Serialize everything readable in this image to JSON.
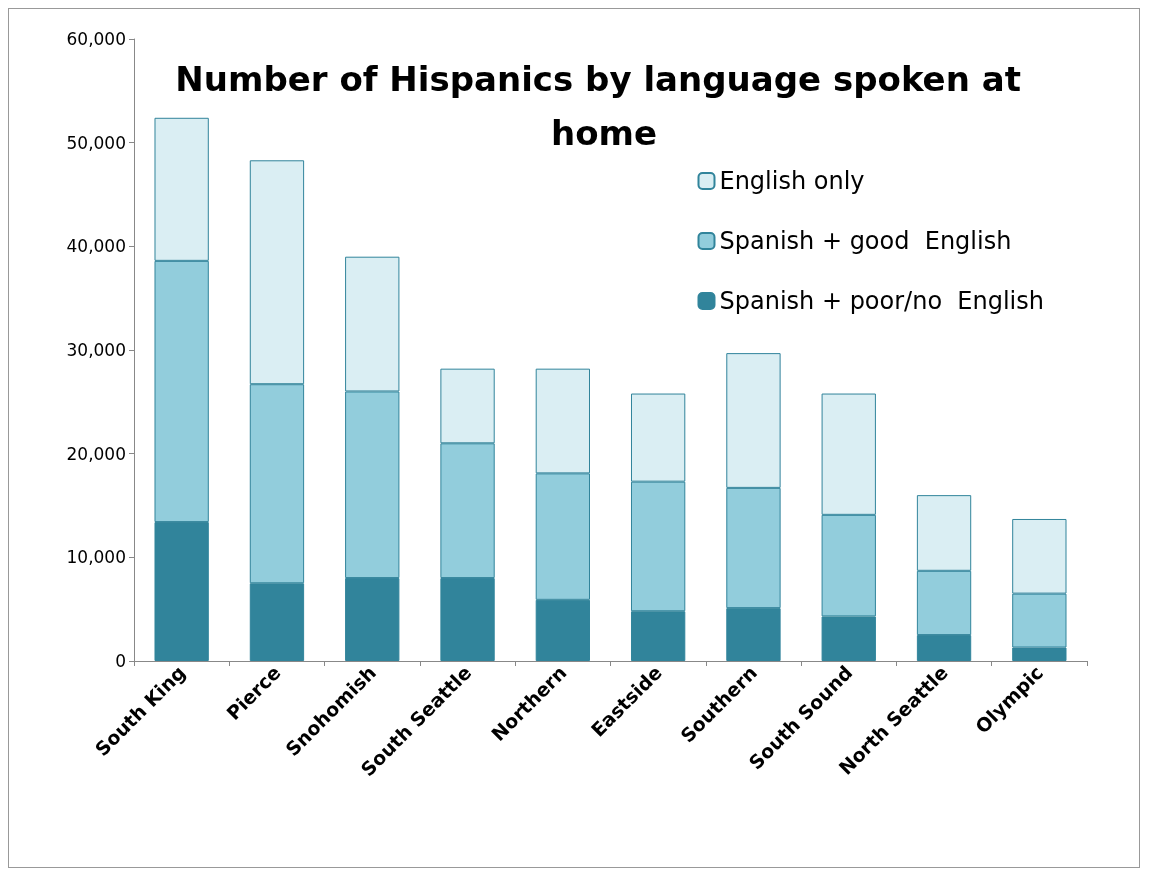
{
  "chart_data": {
    "type": "bar",
    "stacked": true,
    "title": "Number of Hispanics by language spoken at home",
    "categories": [
      "South King",
      "Pierce",
      "Snohomish",
      "South Seattle",
      "Northern",
      "Eastside",
      "Southern",
      "South Sound",
      "North Seattle",
      "Olympic"
    ],
    "series": [
      {
        "name": "Spanish + poor/no  English",
        "color": "#31849b",
        "values": [
          13400,
          7500,
          8000,
          8000,
          5900,
          4800,
          5100,
          4300,
          2500,
          1300
        ]
      },
      {
        "name": "Spanish + good  English",
        "color": "#92cddc",
        "values": [
          25200,
          19200,
          18000,
          13000,
          12200,
          12500,
          11600,
          9800,
          6200,
          5200
        ]
      },
      {
        "name": "English only",
        "color": "#daeef3",
        "values": [
          13800,
          21600,
          13000,
          7200,
          10100,
          8500,
          13000,
          11700,
          7300,
          7200
        ]
      }
    ],
    "ylim": [
      0,
      60000
    ],
    "yticks": [
      0,
      {
        "value": 10000,
        "label": "10,000"
      },
      {
        "value": 20000,
        "label": "20,000"
      },
      {
        "value": 30000,
        "label": "30,000"
      },
      {
        "value": 40000,
        "label": "40,000"
      },
      {
        "value": 50000,
        "label": "50,000"
      },
      {
        "value": 60000,
        "label": "60,000"
      }
    ],
    "grid": false,
    "legend": "top right"
  }
}
